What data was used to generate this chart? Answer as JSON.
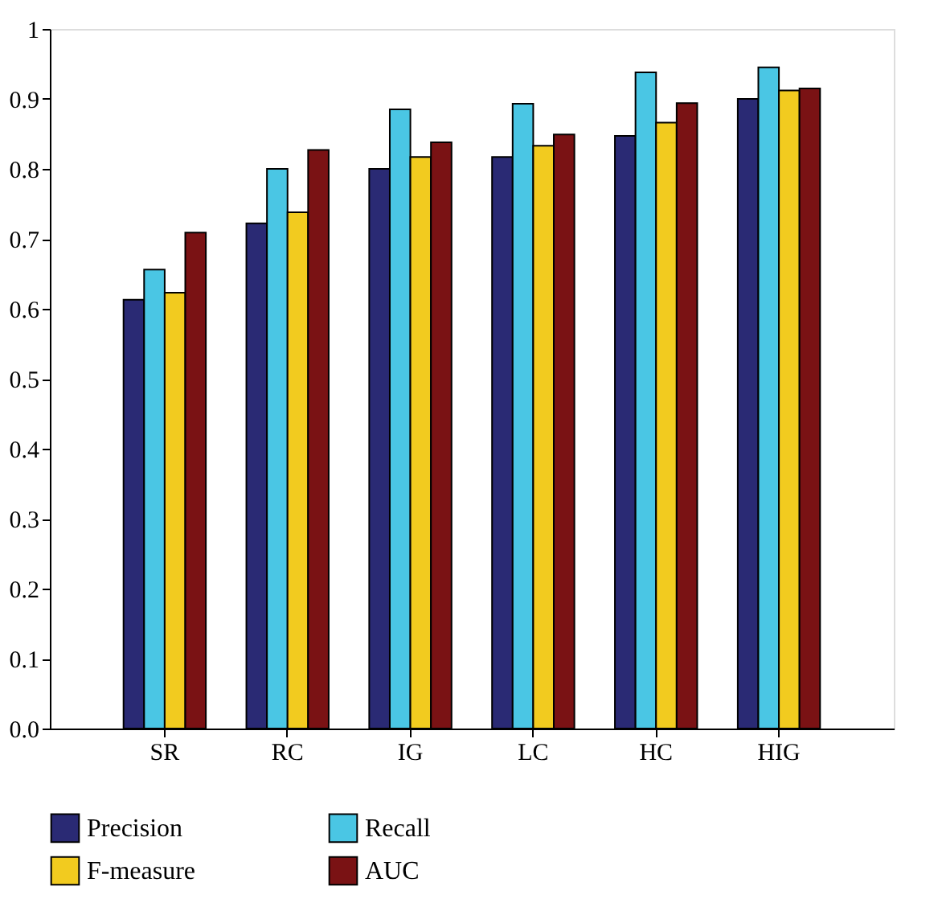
{
  "chart_data": {
    "type": "bar",
    "categories": [
      "SR",
      "RC",
      "IG",
      "LC",
      "HC",
      "HIG"
    ],
    "series": [
      {
        "name": "Precision",
        "color": "#2a2a74",
        "values": [
          0.613,
          0.722,
          0.8,
          0.817,
          0.847,
          0.9
        ]
      },
      {
        "name": "Recall",
        "color": "#4ac6e4",
        "values": [
          0.656,
          0.8,
          0.885,
          0.893,
          0.938,
          0.945
        ]
      },
      {
        "name": "F-measure",
        "color": "#f2cb1f",
        "values": [
          0.623,
          0.738,
          0.817,
          0.833,
          0.866,
          0.912
        ]
      },
      {
        "name": "AUC",
        "color": "#7a1214",
        "values": [
          0.709,
          0.827,
          0.838,
          0.849,
          0.894,
          0.915
        ]
      }
    ],
    "ylim": [
      0,
      1
    ],
    "yticks": [
      {
        "value": 0,
        "label": "0.0"
      },
      0.1,
      0.2,
      0.3,
      0.4,
      0.5,
      0.6,
      0.7,
      0.8,
      0.9,
      1
    ],
    "grid": false,
    "legend": "bottom"
  }
}
